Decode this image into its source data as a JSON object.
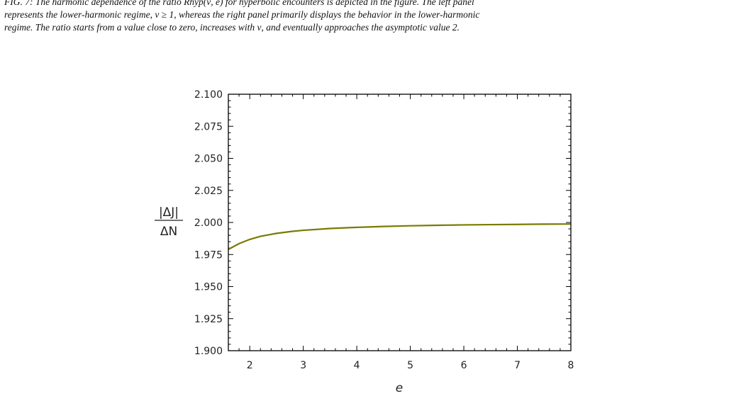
{
  "caption": {
    "line1": "FIG. 7: The harmonic dependence of the ratio Rhyp(ν, e) for hyperbolic encounters is depicted in the figure. The left panel",
    "line2": "represents the lower-harmonic regime, ν ≥ 1, whereas the right panel primarily displays the behavior in the lower-harmonic",
    "line3": "regime. The ratio starts from a value close to zero, increases with ν, and eventually approaches the asymptotic value 2."
  },
  "chart_data": {
    "type": "line",
    "title": "",
    "xlabel": "e",
    "ylabel_numerator": "|ΔJ|",
    "ylabel_denominator": "ΔN",
    "xlim": [
      1.6,
      8.0
    ],
    "ylim": [
      1.9,
      2.1
    ],
    "xticks": [
      2,
      3,
      4,
      5,
      6,
      7,
      8
    ],
    "yticks": [
      "1.900",
      "1.925",
      "1.950",
      "1.975",
      "2.000",
      "2.025",
      "2.050",
      "2.075",
      "2.100"
    ],
    "grid": false,
    "legend": "none",
    "line_color": "#7a7a00",
    "series": [
      {
        "x": [
          1.6,
          1.8,
          2.0,
          2.2,
          2.5,
          2.8,
          3.0,
          3.5,
          4.0,
          4.5,
          5.0,
          5.5,
          6.0,
          6.5,
          7.0,
          7.5,
          8.0
        ],
        "values": [
          1.979,
          1.9835,
          1.9868,
          1.9892,
          1.9915,
          1.9931,
          1.9939,
          1.9953,
          1.9962,
          1.9969,
          1.9974,
          1.9978,
          1.9981,
          1.9983,
          1.9985,
          1.9987,
          1.9988
        ]
      }
    ]
  }
}
